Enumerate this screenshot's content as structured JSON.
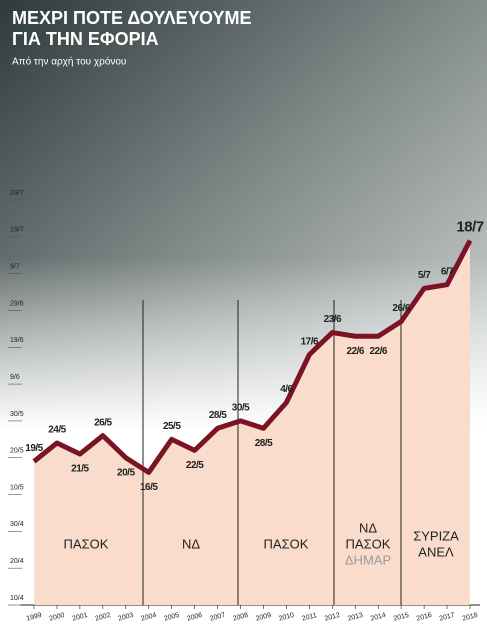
{
  "chart_data": {
    "type": "line",
    "title": [
      "ΜΕΧΡΙ ΠΟΤΕ ΔΟΥΛΕΥΟΥΜΕ",
      "ΓΙΑ ΤΗΝ ΕΦΟΡΙΑ"
    ],
    "subtitle": "Από την αρχή του χρόνου",
    "categories": [
      "1999",
      "2000",
      "2001",
      "2002",
      "2003",
      "2004",
      "2005",
      "2006",
      "2007",
      "2008",
      "2009",
      "2010",
      "2011",
      "2012",
      "2013",
      "2014",
      "2015",
      "2016",
      "2017",
      "2018"
    ],
    "series": [
      {
        "color": "#7a1424",
        "fill": "#f9dccb",
        "values": [
          139,
          144,
          141,
          146,
          140,
          136,
          145,
          142,
          148,
          150,
          148,
          155,
          168,
          174,
          173,
          173,
          177,
          186,
          187,
          199
        ],
        "value_labels": [
          "19/5",
          "24/5",
          "21/5",
          "26/5",
          "20/5",
          "16/5",
          "25/5",
          "22/5",
          "28/5",
          "30/5",
          "28/5",
          "4/6",
          "17/6",
          "23/6",
          "22/6",
          "22/6",
          "26/6",
          "5/7",
          "6/7",
          "18/7"
        ]
      }
    ],
    "ylim": [
      100,
      210
    ],
    "yticks": [
      {
        "value": 100,
        "label": "10/4"
      },
      {
        "value": 110,
        "label": "20/4"
      },
      {
        "value": 120,
        "label": "30/4"
      },
      {
        "value": 130,
        "label": "10/5"
      },
      {
        "value": 140,
        "label": "20/5"
      },
      {
        "value": 150,
        "label": "30/5"
      },
      {
        "value": 160,
        "label": "9/6"
      },
      {
        "value": 170,
        "label": "19/6"
      },
      {
        "value": 180,
        "label": "29/6"
      },
      {
        "value": 190,
        "label": "9/7"
      },
      {
        "value": 200,
        "label": "19/7"
      },
      {
        "value": 210,
        "label": "29/7"
      }
    ],
    "periods": [
      [
        "ΠΑΣΟΚ"
      ],
      [
        "ΝΔ"
      ],
      [
        "ΠΑΣΟΚ"
      ],
      [
        "ΝΔ",
        "ΠΑΣΟΚ",
        "ΔΗΜΑΡ"
      ],
      [
        "ΣΥΡΙΖΑ",
        "ΑΝΕΛ"
      ]
    ]
  }
}
